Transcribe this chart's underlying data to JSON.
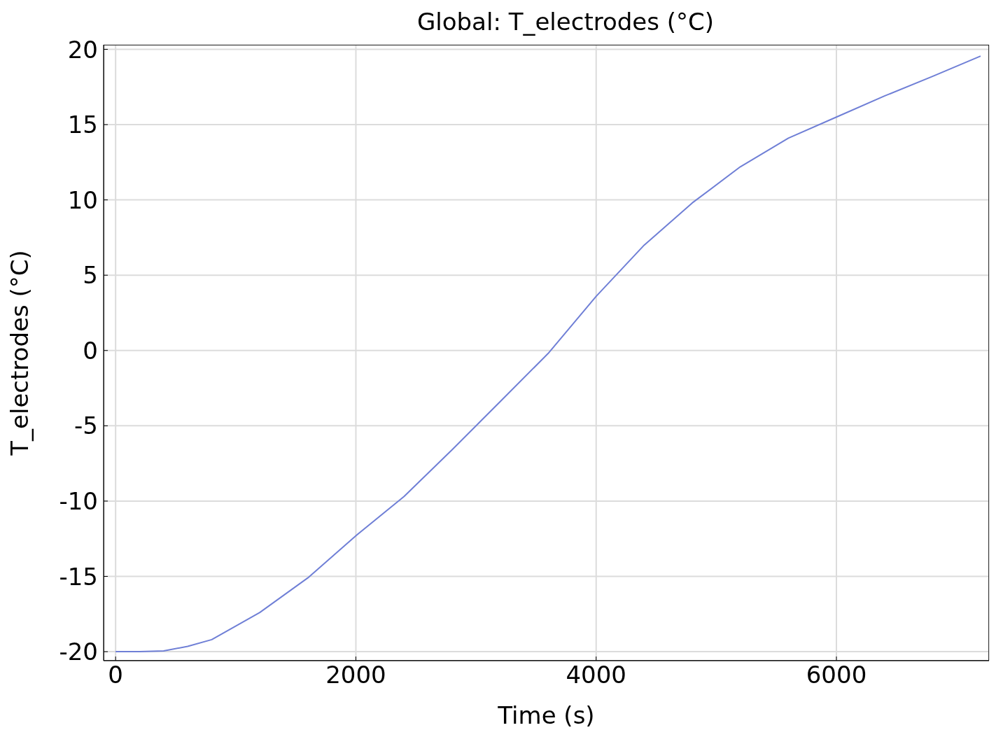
{
  "chart_data": {
    "type": "line",
    "title": "Global: T_electrodes (°C)",
    "xlabel": "Time (s)",
    "ylabel": "T_electrodes (°C)",
    "x": [
      0,
      200,
      400,
      600,
      800,
      1200,
      1600,
      2000,
      2400,
      2800,
      3200,
      3600,
      4000,
      4400,
      4800,
      5200,
      5600,
      6000,
      6400,
      6800,
      7200
    ],
    "series": [
      {
        "color": "#6f7fd6",
        "values": [
          -20,
          -20,
          -19.95,
          -19.65,
          -19.2,
          -17.4,
          -15.1,
          -12.3,
          -9.7,
          -6.6,
          -3.4,
          -0.2,
          3.6,
          7,
          9.8,
          12.2,
          14.1,
          15.5,
          16.9,
          18.2,
          19.55
        ]
      }
    ],
    "xlim": [
      -100,
      7270
    ],
    "ylim": [
      -20.6,
      20.3
    ],
    "xticks": [
      0,
      2000,
      4000,
      6000
    ],
    "yticks": [
      -20,
      -15,
      -10,
      -5,
      0,
      5,
      10,
      15,
      20
    ],
    "grid": true,
    "legend": false,
    "marker": "none",
    "line_style": "solid"
  }
}
